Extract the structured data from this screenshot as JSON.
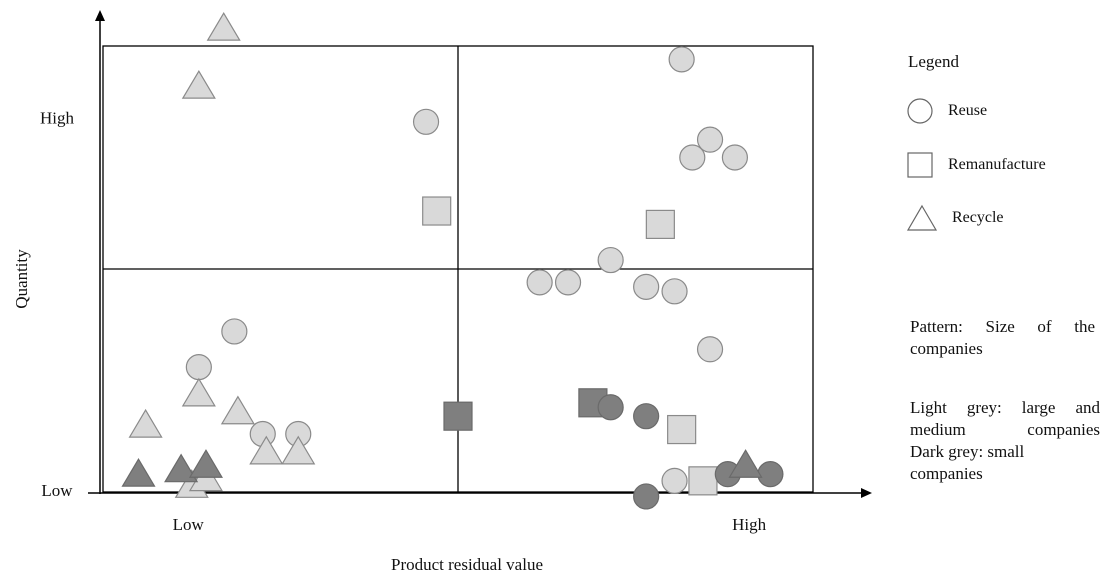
{
  "chart_data": {
    "type": "scatter",
    "title": "",
    "xlabel": "Product residual value",
    "ylabel": "Quantity",
    "xlim": [
      0,
      100
    ],
    "ylim": [
      0,
      100
    ],
    "grid": "quadrant dividers at x=50, y=50",
    "x_ticks": [
      {
        "value": 12,
        "label": "Low"
      },
      {
        "value": 91,
        "label": "High"
      }
    ],
    "y_ticks": [
      {
        "value": 84,
        "label": "High"
      },
      {
        "value": 0.5,
        "label": "Low"
      }
    ],
    "series": [
      {
        "name": "Reuse",
        "marker": "circle",
        "shade": "light",
        "points": [
          [
            13.5,
            28
          ],
          [
            18.5,
            36
          ],
          [
            45.5,
            83
          ],
          [
            61.5,
            47
          ],
          [
            65.5,
            47
          ],
          [
            71.5,
            52
          ],
          [
            76.5,
            46
          ],
          [
            80.5,
            45
          ],
          [
            81.5,
            97
          ],
          [
            85.5,
            79
          ],
          [
            83,
            75
          ],
          [
            89,
            75
          ],
          [
            85.5,
            32
          ],
          [
            22.5,
            13
          ],
          [
            27.5,
            13
          ],
          [
            80.5,
            2.5
          ]
        ]
      },
      {
        "name": "Remanufacture",
        "marker": "square",
        "shade": "light",
        "points": [
          [
            47,
            63
          ],
          [
            78.5,
            60
          ],
          [
            81.5,
            14
          ],
          [
            84.5,
            2.5
          ]
        ]
      },
      {
        "name": "Recycle",
        "marker": "triangle",
        "shade": "light",
        "points": [
          [
            17,
            104
          ],
          [
            13.5,
            91
          ],
          [
            6,
            15
          ],
          [
            13.5,
            22
          ],
          [
            19,
            18
          ],
          [
            12.5,
            1.5
          ],
          [
            14.5,
            3
          ],
          [
            23,
            9
          ],
          [
            27.5,
            9
          ]
        ]
      },
      {
        "name": "Remanufacture",
        "marker": "square",
        "shade": "dark",
        "points": [
          [
            50,
            17
          ],
          [
            69,
            20
          ]
        ]
      },
      {
        "name": "Reuse",
        "marker": "circle",
        "shade": "dark",
        "points": [
          [
            71.5,
            19
          ],
          [
            76.5,
            17
          ],
          [
            76.5,
            -1
          ],
          [
            88,
            4
          ],
          [
            94,
            4
          ]
        ]
      },
      {
        "name": "Recycle",
        "marker": "triangle",
        "shade": "dark",
        "points": [
          [
            5,
            4
          ],
          [
            11,
            5
          ],
          [
            14.5,
            6
          ],
          [
            90.5,
            6
          ]
        ]
      }
    ],
    "colors": {
      "light": "#d9d9d9",
      "dark": "#7f7f7f",
      "outline": "#8a8a8a",
      "axis": "#000000"
    }
  },
  "legend": {
    "title": "Legend",
    "items": [
      {
        "label": "Reuse",
        "icon": "circle-icon"
      },
      {
        "label": "Remanufacture",
        "icon": "square-icon"
      },
      {
        "label": "Recycle",
        "icon": "triangle-icon"
      }
    ]
  },
  "notes": {
    "pattern_line1": "Pattern: Size of the",
    "pattern_line2": "companies",
    "light_line1": "Light grey: large and",
    "light_line2": "medium companies",
    "dark_line1": "Dark grey: small",
    "dark_line2": "companies"
  }
}
